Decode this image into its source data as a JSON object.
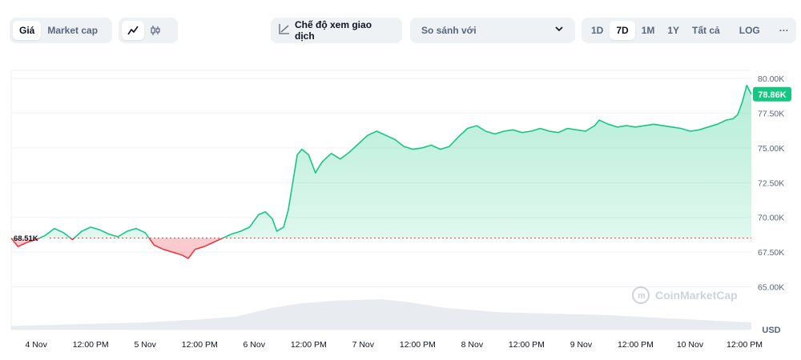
{
  "toolbar": {
    "metric_tabs": [
      {
        "label": "Giá",
        "active": true
      },
      {
        "label": "Market cap",
        "active": false
      }
    ],
    "chart_style": {
      "line_icon": "line-chart-icon",
      "candle_icon": "candlestick-icon",
      "active": "line"
    },
    "view_mode_label": "Chế độ xem giao dịch",
    "view_mode_icon": "trend-line-icon",
    "compare_label": "So sánh với",
    "compare_icon": "chevron-down-icon",
    "ranges": [
      "1D",
      "7D",
      "1M",
      "1Y",
      "Tất cả"
    ],
    "active_range": "7D",
    "log_label": "LOG",
    "more_label": "···"
  },
  "watermark": "CoinMarketCap",
  "colors": {
    "up": "#16c784",
    "down": "#ea3943",
    "baseline": "#c9cfd8",
    "grid": "#eff2f5"
  },
  "chart_data": {
    "type": "area",
    "currency": "USD",
    "ylim": [
      62500,
      80000
    ],
    "yticks": [
      65000,
      67500,
      70000,
      72500,
      75000,
      77500,
      80000
    ],
    "ytick_labels": [
      "65.00K",
      "67.50K",
      "70.00K",
      "72.50K",
      "75.00K",
      "77.50K",
      "80.00K"
    ],
    "baseline": {
      "value": 68510,
      "label": "68.51K"
    },
    "current": {
      "value": 78860,
      "label": "78.86K"
    },
    "xlim": [
      "2024-11-03T18:30",
      "2024-11-10T13:30"
    ],
    "xticks": [
      {
        "t": "2024-11-04T00:00",
        "label": "4 Nov"
      },
      {
        "t": "2024-11-04T12:00",
        "label": "12:00 PM"
      },
      {
        "t": "2024-11-05T00:00",
        "label": "5 Nov"
      },
      {
        "t": "2024-11-05T12:00",
        "label": "12:00 PM"
      },
      {
        "t": "2024-11-06T00:00",
        "label": "6 Nov"
      },
      {
        "t": "2024-11-06T12:00",
        "label": "12:00 PM"
      },
      {
        "t": "2024-11-07T00:00",
        "label": "7 Nov"
      },
      {
        "t": "2024-11-07T12:00",
        "label": "12:00 PM"
      },
      {
        "t": "2024-11-08T00:00",
        "label": "8 Nov"
      },
      {
        "t": "2024-11-08T12:00",
        "label": "12:00 PM"
      },
      {
        "t": "2024-11-09T00:00",
        "label": "9 Nov"
      },
      {
        "t": "2024-11-09T12:00",
        "label": "12:00 PM"
      },
      {
        "t": "2024-11-10T00:00",
        "label": "10 Nov"
      },
      {
        "t": "2024-11-10T12:00",
        "label": "12:00 PM"
      }
    ],
    "series": [
      {
        "points": [
          [
            "2024-11-03T18:30",
            68510
          ],
          [
            "2024-11-03T20:00",
            67900
          ],
          [
            "2024-11-03T22:00",
            68200
          ],
          [
            "2024-11-04T00:00",
            68400
          ],
          [
            "2024-11-04T02:00",
            68700
          ],
          [
            "2024-11-04T04:00",
            69200
          ],
          [
            "2024-11-04T06:00",
            68900
          ],
          [
            "2024-11-04T08:00",
            68400
          ],
          [
            "2024-11-04T10:00",
            69000
          ],
          [
            "2024-11-04T12:00",
            69300
          ],
          [
            "2024-11-04T14:00",
            69100
          ],
          [
            "2024-11-04T16:00",
            68800
          ],
          [
            "2024-11-04T18:00",
            68600
          ],
          [
            "2024-11-04T20:00",
            69000
          ],
          [
            "2024-11-04T22:00",
            69200
          ],
          [
            "2024-11-05T00:00",
            68900
          ],
          [
            "2024-11-05T02:00",
            68000
          ],
          [
            "2024-11-05T04:00",
            67700
          ],
          [
            "2024-11-05T06:00",
            67500
          ],
          [
            "2024-11-05T08:00",
            67300
          ],
          [
            "2024-11-05T09:30",
            67050
          ],
          [
            "2024-11-05T11:00",
            67700
          ],
          [
            "2024-11-05T13:00",
            67900
          ],
          [
            "2024-11-05T15:00",
            68200
          ],
          [
            "2024-11-05T17:00",
            68500
          ],
          [
            "2024-11-05T19:00",
            68800
          ],
          [
            "2024-11-05T21:00",
            69000
          ],
          [
            "2024-11-05T23:00",
            69300
          ],
          [
            "2024-11-06T01:00",
            70200
          ],
          [
            "2024-11-06T02:30",
            70400
          ],
          [
            "2024-11-06T04:00",
            69900
          ],
          [
            "2024-11-06T05:00",
            69000
          ],
          [
            "2024-11-06T06:30",
            69300
          ],
          [
            "2024-11-06T07:30",
            70500
          ],
          [
            "2024-11-06T08:30",
            72500
          ],
          [
            "2024-11-06T09:30",
            74500
          ],
          [
            "2024-11-06T10:30",
            74900
          ],
          [
            "2024-11-06T12:00",
            74500
          ],
          [
            "2024-11-06T13:30",
            73200
          ],
          [
            "2024-11-06T15:00",
            74000
          ],
          [
            "2024-11-06T17:00",
            74600
          ],
          [
            "2024-11-06T19:00",
            74200
          ],
          [
            "2024-11-06T21:00",
            74700
          ],
          [
            "2024-11-06T23:00",
            75300
          ],
          [
            "2024-11-07T01:00",
            75900
          ],
          [
            "2024-11-07T03:00",
            76200
          ],
          [
            "2024-11-07T05:00",
            75900
          ],
          [
            "2024-11-07T07:00",
            75600
          ],
          [
            "2024-11-07T09:00",
            75100
          ],
          [
            "2024-11-07T11:00",
            74900
          ],
          [
            "2024-11-07T13:00",
            75000
          ],
          [
            "2024-11-07T15:00",
            75200
          ],
          [
            "2024-11-07T17:00",
            74900
          ],
          [
            "2024-11-07T19:00",
            75100
          ],
          [
            "2024-11-07T21:00",
            75800
          ],
          [
            "2024-11-07T23:00",
            76400
          ],
          [
            "2024-11-08T01:00",
            76600
          ],
          [
            "2024-11-08T03:00",
            76200
          ],
          [
            "2024-11-08T05:00",
            76000
          ],
          [
            "2024-11-08T07:00",
            76200
          ],
          [
            "2024-11-08T09:00",
            76300
          ],
          [
            "2024-11-08T11:00",
            76100
          ],
          [
            "2024-11-08T13:00",
            76200
          ],
          [
            "2024-11-08T15:00",
            76400
          ],
          [
            "2024-11-08T17:00",
            76200
          ],
          [
            "2024-11-08T19:00",
            76100
          ],
          [
            "2024-11-08T21:00",
            76400
          ],
          [
            "2024-11-08T23:00",
            76300
          ],
          [
            "2024-11-09T01:00",
            76200
          ],
          [
            "2024-11-09T03:00",
            76600
          ],
          [
            "2024-11-09T04:00",
            77000
          ],
          [
            "2024-11-09T06:00",
            76700
          ],
          [
            "2024-11-09T08:00",
            76500
          ],
          [
            "2024-11-09T10:00",
            76600
          ],
          [
            "2024-11-09T12:00",
            76500
          ],
          [
            "2024-11-09T14:00",
            76600
          ],
          [
            "2024-11-09T16:00",
            76700
          ],
          [
            "2024-11-09T18:00",
            76600
          ],
          [
            "2024-11-09T20:00",
            76500
          ],
          [
            "2024-11-09T22:00",
            76400
          ],
          [
            "2024-11-10T00:00",
            76200
          ],
          [
            "2024-11-10T02:00",
            76300
          ],
          [
            "2024-11-10T04:00",
            76500
          ],
          [
            "2024-11-10T06:00",
            76700
          ],
          [
            "2024-11-10T08:00",
            77000
          ],
          [
            "2024-11-10T09:30",
            77100
          ],
          [
            "2024-11-10T10:30",
            77400
          ],
          [
            "2024-11-10T11:30",
            78300
          ],
          [
            "2024-11-10T12:30",
            79500
          ],
          [
            "2024-11-10T13:30",
            78860
          ]
        ]
      }
    ],
    "volume": [
      [
        "2024-11-03T18:30",
        5
      ],
      [
        "2024-11-04T12:00",
        8
      ],
      [
        "2024-11-05T00:00",
        10
      ],
      [
        "2024-11-05T12:00",
        14
      ],
      [
        "2024-11-05T20:00",
        18
      ],
      [
        "2024-11-06T04:00",
        30
      ],
      [
        "2024-11-06T10:00",
        36
      ],
      [
        "2024-11-06T18:00",
        40
      ],
      [
        "2024-11-07T04:00",
        42
      ],
      [
        "2024-11-07T10:00",
        38
      ],
      [
        "2024-11-07T18:00",
        30
      ],
      [
        "2024-11-08T06:00",
        24
      ],
      [
        "2024-11-08T18:00",
        22
      ],
      [
        "2024-11-09T06:00",
        20
      ],
      [
        "2024-11-09T18:00",
        16
      ],
      [
        "2024-11-10T06:00",
        12
      ],
      [
        "2024-11-10T13:30",
        10
      ]
    ]
  }
}
